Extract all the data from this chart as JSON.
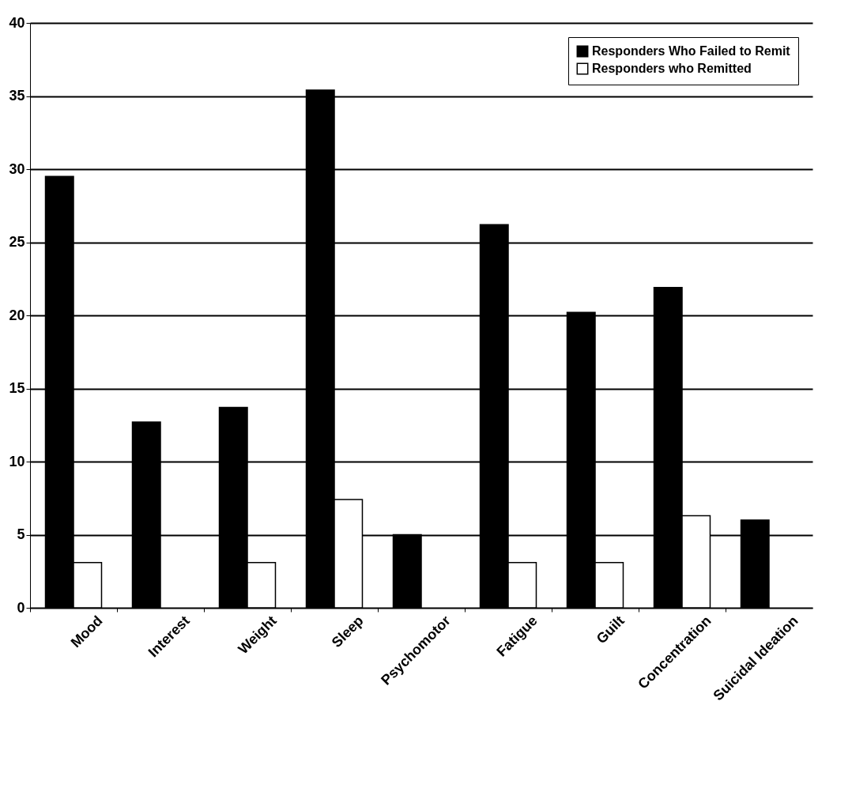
{
  "chart_data": {
    "type": "bar",
    "categories": [
      "Mood",
      "Interest",
      "Weight",
      "Sleep",
      "Psychomotor",
      "Fatigue",
      "Guilt",
      "Concentration",
      "Suicidal Ideation"
    ],
    "series": [
      {
        "name": "Responders Who Failed to Remit",
        "color": "#000000",
        "values": [
          29.5,
          12.7,
          13.7,
          35.4,
          5.0,
          26.2,
          20.2,
          21.9,
          6.0
        ]
      },
      {
        "name": "Responders who Remitted",
        "color": "#ffffff",
        "values": [
          3.1,
          null,
          3.1,
          7.4,
          null,
          3.1,
          3.1,
          6.3,
          null
        ]
      }
    ],
    "ylim": [
      0,
      40
    ],
    "yticks": [
      0,
      5,
      10,
      15,
      20,
      25,
      30,
      35,
      40
    ],
    "grid": "y",
    "legend": "top right"
  }
}
